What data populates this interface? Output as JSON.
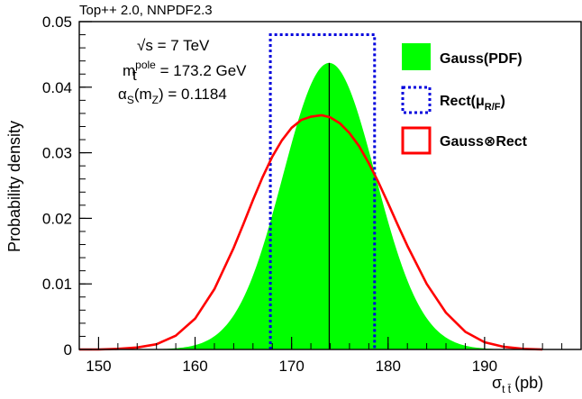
{
  "header": {
    "note": "Top++ 2.0, NNPDF2.3"
  },
  "chart_data": {
    "type": "area",
    "title": "",
    "xlabel": {
      "symbol": "σ",
      "sub": "t t̄",
      "unit": "(pb)"
    },
    "ylabel": "Probability density",
    "xlim": [
      148,
      200
    ],
    "ylim": [
      0,
      0.05
    ],
    "x_ticks": [
      150,
      160,
      170,
      180,
      190
    ],
    "y_ticks": [
      0,
      0.01,
      0.02,
      0.03,
      0.04,
      0.05
    ],
    "y_tick_labels": [
      "0",
      "0.01",
      "0.02",
      "0.03",
      "0.04",
      "0.05"
    ],
    "grid": false,
    "legend_position": "top-right",
    "annotations": {
      "sqrt_s": {
        "sqrt": "√",
        "var": "s",
        "rest": " = 7 TeV"
      },
      "mass": {
        "base": "m",
        "sup": "pole",
        "sub": "t",
        "rest": " = 173.2 GeV"
      },
      "alpha": {
        "base": "α",
        "sub": "S",
        "open": "(m",
        "sub2": "Z",
        "rest": ") = 0.1184"
      }
    },
    "series": [
      {
        "name": "Gauss(PDF)",
        "kind": "gaussian",
        "mean": 173.9,
        "sigma": 4.8,
        "peak": 0.0437,
        "color": "#00ff00",
        "style": "filled"
      },
      {
        "name": "Rect(μR/F)",
        "legend_base": "Rect(μ",
        "legend_sub": "R/F",
        "legend_close": ")",
        "kind": "rectangle",
        "x_range": [
          167.8,
          178.6
        ],
        "height": 0.048,
        "color": "#0000dd",
        "style": "dotted"
      },
      {
        "name": "Gauss⊗Rect",
        "kind": "convolution",
        "color": "#ff0000",
        "style": "line",
        "x": [
          148,
          150,
          152,
          154,
          156,
          158,
          160,
          162,
          164,
          165,
          166,
          167,
          168,
          169,
          170,
          171,
          172,
          173,
          173.2,
          174,
          175,
          176,
          177,
          178,
          179,
          180,
          181,
          182,
          184,
          186,
          188,
          190,
          192,
          194,
          196
        ],
        "y": [
          0.0,
          0.0,
          0.0001,
          0.0003,
          0.0008,
          0.0021,
          0.0047,
          0.0092,
          0.0155,
          0.0191,
          0.0228,
          0.0263,
          0.0294,
          0.0319,
          0.0338,
          0.035,
          0.0355,
          0.0357,
          0.0357,
          0.0354,
          0.0345,
          0.033,
          0.031,
          0.0284,
          0.0255,
          0.0223,
          0.019,
          0.0158,
          0.01,
          0.0056,
          0.0027,
          0.0011,
          0.0004,
          0.0001,
          0.0
        ]
      }
    ],
    "central_line": {
      "x": 173.9,
      "y_top": 0.0437
    }
  }
}
